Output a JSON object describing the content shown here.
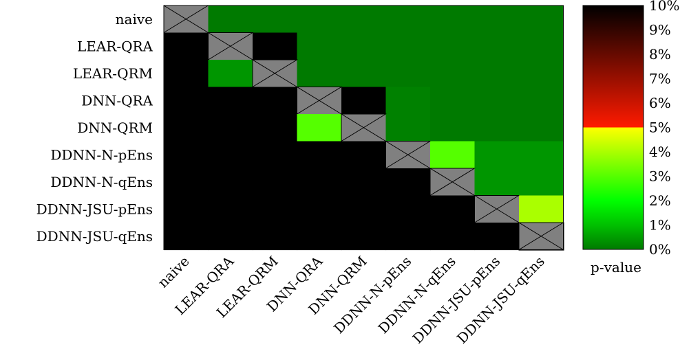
{
  "chart_data": {
    "type": "heatmap",
    "rows": [
      "naive",
      "LEAR-QRA",
      "LEAR-QRM",
      "DNN-QRA",
      "DNN-QRM",
      "DDNN-N-pEns",
      "DDNN-N-qEns",
      "DDNN-JSU-pEns",
      "DDNN-JSU-qEns"
    ],
    "columns": [
      "naive",
      "LEAR-QRA",
      "LEAR-QRM",
      "DNN-QRA",
      "DNN-QRM",
      "DDNN-N-pEns",
      "DDNN-N-qEns",
      "DDNN-JSU-pEns",
      "DDNN-JSU-qEns"
    ],
    "values": [
      [
        null,
        0,
        0,
        0,
        0,
        0,
        0,
        0,
        0
      ],
      [
        1,
        null,
        1,
        0,
        0,
        0,
        0,
        0,
        0
      ],
      [
        1,
        0.004,
        null,
        0,
        0,
        0,
        0,
        0,
        0
      ],
      [
        1,
        1,
        1,
        null,
        1,
        0.001,
        0,
        0,
        0
      ],
      [
        1,
        1,
        1,
        0.03,
        null,
        0.001,
        0,
        0,
        0
      ],
      [
        1,
        1,
        1,
        1,
        1,
        null,
        0.03,
        0.004,
        0.004
      ],
      [
        1,
        1,
        1,
        1,
        1,
        1,
        null,
        0.004,
        0.004
      ],
      [
        1,
        1,
        1,
        1,
        1,
        1,
        1,
        null,
        0.04
      ],
      [
        1,
        1,
        1,
        1,
        1,
        1,
        1,
        1,
        null
      ]
    ],
    "colorbar": {
      "ticks": [
        "0%",
        "1%",
        "2%",
        "3%",
        "4%",
        "5%",
        "6%",
        "7%",
        "8%",
        "9%",
        "10%"
      ],
      "range": [
        0,
        0.1
      ],
      "title": "p-value"
    },
    "diagonal": "gray cell with X",
    "colors": {
      "green_dark": "#007a00",
      "green_mid": "#1fd41f",
      "yellow": "#ffff00",
      "red": "#ff1a00",
      "black": "#000000",
      "diagonal": "#808080"
    }
  }
}
